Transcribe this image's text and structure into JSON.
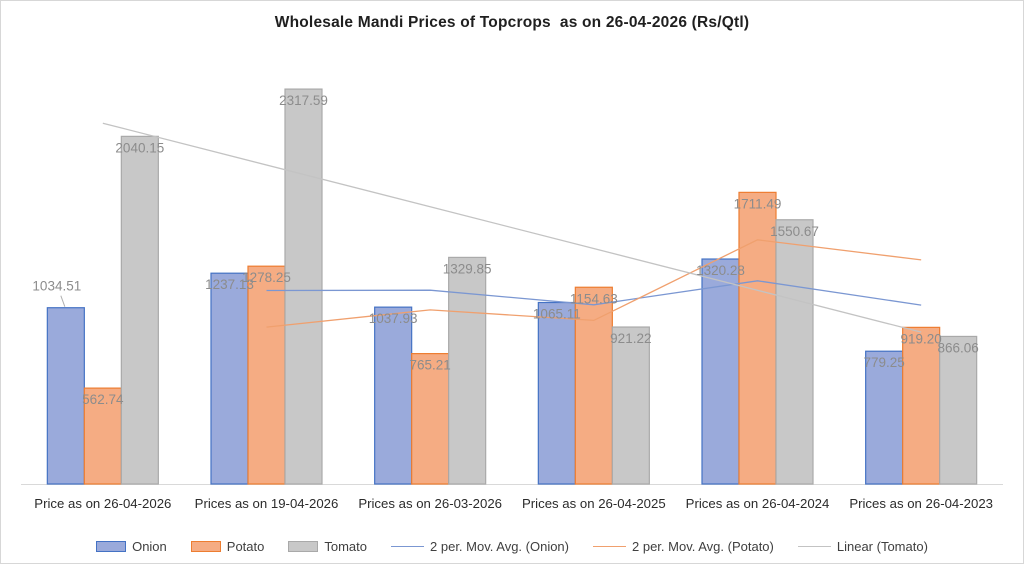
{
  "title": "Wholesale Mandi Prices of Topcrops  as on 26-04-2026 (Rs/Qtl)",
  "chart_data": {
    "type": "bar",
    "title": "Wholesale Mandi Prices of Topcrops  as on 26-04-2026 (Rs/Qtl)",
    "categories": [
      "Price as on 26-04-2026",
      "Prices as on 19-04-2026",
      "Prices as on 26-03-2026",
      "Prices as on 26-04-2025",
      "Prices as on 26-04-2024",
      "Prices as on 26-04-2023"
    ],
    "series": [
      {
        "name": "Onion",
        "values": [
          1034.51,
          1237.13,
          1037.93,
          1065.11,
          1320.28,
          779.25
        ],
        "fill": "#9aaadb",
        "border": "#4472c4"
      },
      {
        "name": "Potato",
        "values": [
          562.74,
          1278.25,
          765.21,
          1154.63,
          1711.49,
          919.2
        ],
        "fill": "#f5ac83",
        "border": "#ed7d31"
      },
      {
        "name": "Tomato",
        "values": [
          2040.15,
          2317.59,
          1329.85,
          921.22,
          1550.67,
          866.06
        ],
        "fill": "#c8c8c8",
        "border": "#a9a9a9"
      }
    ],
    "trendlines": [
      {
        "name": "2 per. Mov. Avg. (Onion)",
        "type": "moving_average",
        "period": 2,
        "series": "Onion",
        "color": "#7b97d2"
      },
      {
        "name": "2 per. Mov. Avg. (Potato)",
        "type": "moving_average",
        "period": 2,
        "series": "Potato",
        "color": "#f0a06e"
      },
      {
        "name": "Linear (Tomato)",
        "type": "linear",
        "series": "Tomato",
        "color": "#c3c3c3"
      }
    ],
    "ylim": [
      0,
      2500
    ],
    "grid": false,
    "value_axis_visible": false,
    "data_labels": true,
    "label_color": "#8c8c8c",
    "axis_line_color": "#d9d9d9",
    "category_label_color": "#2b2b2b",
    "legend_position": "bottom",
    "label_overrides": [
      {
        "series": "Onion",
        "index": 0,
        "position": "above",
        "leader_line": true
      }
    ],
    "xlabel": "",
    "ylabel": ""
  }
}
